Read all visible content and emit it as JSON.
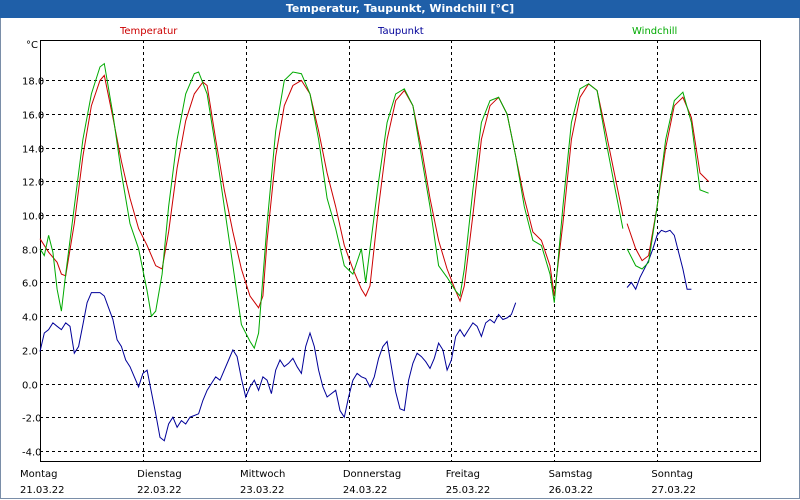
{
  "window": {
    "title": "Temperatur, Taupunkt, Windchill [°C]"
  },
  "colors": {
    "temperatur": "#cc0000",
    "taupunkt": "#000099",
    "windchill": "#00aa00",
    "grid": "#000000",
    "title_bg": "#1f5fa8"
  },
  "chart_data": {
    "type": "line",
    "title": "Temperatur, Taupunkt, Windchill [°C]",
    "ylabel": "°C",
    "ylim": [
      -4.6,
      20.4
    ],
    "yticks": [
      "18.0",
      "16.0",
      "14.0",
      "12.0",
      "10.0",
      "8.0",
      "6.0",
      "4.0",
      "2.0",
      "0.0",
      "-2.0",
      "-4.0"
    ],
    "ytick_values": [
      18,
      16,
      14,
      12,
      10,
      8,
      6,
      4,
      2,
      0,
      -2,
      -4
    ],
    "x_unit": "hours since 21.03.22 00:00",
    "xlim": [
      0,
      168
    ],
    "day_labels": [
      {
        "day": "Montag",
        "date": "21.03.22"
      },
      {
        "day": "Dienstag",
        "date": "22.03.22"
      },
      {
        "day": "Mittwoch",
        "date": "23.03.22"
      },
      {
        "day": "Donnerstag",
        "date": "24.03.22"
      },
      {
        "day": "Freitag",
        "date": "25.03.22"
      },
      {
        "day": "Samstag",
        "date": "26.03.22"
      },
      {
        "day": "Sonntag",
        "date": "27.03.22"
      }
    ],
    "grid": true,
    "series": [
      {
        "name": "Temperatur",
        "color": "#cc0000",
        "points": [
          [
            0,
            8.6
          ],
          [
            2,
            7.8
          ],
          [
            4,
            7.2
          ],
          [
            5,
            6.5
          ],
          [
            6,
            6.4
          ],
          [
            8,
            9.5
          ],
          [
            10,
            13.5
          ],
          [
            12,
            16.5
          ],
          [
            14,
            18.0
          ],
          [
            15,
            18.3
          ],
          [
            17,
            15.8
          ],
          [
            19,
            13.2
          ],
          [
            21,
            11.0
          ],
          [
            23,
            9.2
          ],
          [
            25,
            8.2
          ],
          [
            27,
            7.0
          ],
          [
            28.5,
            6.8
          ],
          [
            30,
            9.0
          ],
          [
            32,
            12.8
          ],
          [
            34,
            15.6
          ],
          [
            36,
            17.2
          ],
          [
            38,
            17.9
          ],
          [
            39,
            17.7
          ],
          [
            41,
            14.5
          ],
          [
            43,
            11.5
          ],
          [
            45,
            9.0
          ],
          [
            47,
            6.8
          ],
          [
            49,
            5.2
          ],
          [
            51,
            4.5
          ],
          [
            52,
            5.2
          ],
          [
            53,
            8.5
          ],
          [
            55,
            13.5
          ],
          [
            57,
            16.5
          ],
          [
            59,
            17.7
          ],
          [
            61,
            18.0
          ],
          [
            63,
            17.2
          ],
          [
            65,
            15.0
          ],
          [
            67,
            12.5
          ],
          [
            69,
            10.5
          ],
          [
            71,
            8.2
          ],
          [
            73,
            6.8
          ],
          [
            75,
            5.6
          ],
          [
            76,
            5.2
          ],
          [
            77,
            5.8
          ],
          [
            79,
            10.5
          ],
          [
            81,
            14.5
          ],
          [
            83,
            16.8
          ],
          [
            85,
            17.4
          ],
          [
            87,
            16.5
          ],
          [
            89,
            14.0
          ],
          [
            91,
            11.0
          ],
          [
            93,
            8.5
          ],
          [
            95,
            6.8
          ],
          [
            97,
            5.5
          ],
          [
            98,
            4.9
          ],
          [
            99,
            5.8
          ],
          [
            101,
            10.0
          ],
          [
            103,
            14.5
          ],
          [
            105,
            16.5
          ],
          [
            107,
            17.0
          ],
          [
            109,
            16.0
          ],
          [
            111,
            13.5
          ],
          [
            113,
            11.0
          ],
          [
            115,
            9.0
          ],
          [
            117,
            8.5
          ],
          [
            119,
            7.0
          ],
          [
            120,
            5.2
          ],
          [
            122,
            9.5
          ],
          [
            124,
            14.5
          ],
          [
            126,
            17.0
          ],
          [
            128,
            17.8
          ],
          [
            130,
            17.4
          ],
          [
            132,
            15.0
          ],
          [
            134,
            12.5
          ],
          [
            136,
            10.0
          ]
        ],
        "points_2": [
          [
            137,
            9.5
          ],
          [
            139,
            8.0
          ],
          [
            140.5,
            7.3
          ],
          [
            142,
            7.6
          ],
          [
            144,
            10.5
          ],
          [
            146,
            14.0
          ],
          [
            148,
            16.5
          ],
          [
            150,
            17.0
          ],
          [
            152,
            15.8
          ],
          [
            154,
            12.5
          ],
          [
            156,
            12.0
          ]
        ]
      },
      {
        "name": "Taupunkt",
        "color": "#000099",
        "points": [
          [
            0,
            1.9
          ],
          [
            1,
            3.0
          ],
          [
            2,
            3.2
          ],
          [
            3,
            3.6
          ],
          [
            4,
            3.4
          ],
          [
            5,
            3.2
          ],
          [
            6,
            3.6
          ],
          [
            7,
            3.4
          ],
          [
            8,
            1.8
          ],
          [
            9,
            2.2
          ],
          [
            10,
            3.5
          ],
          [
            11,
            4.8
          ],
          [
            12,
            5.4
          ],
          [
            13,
            5.4
          ],
          [
            14,
            5.4
          ],
          [
            15,
            5.2
          ],
          [
            16,
            4.5
          ],
          [
            17,
            3.8
          ],
          [
            18,
            2.6
          ],
          [
            19,
            2.2
          ],
          [
            20,
            1.4
          ],
          [
            21,
            1.0
          ],
          [
            22,
            0.4
          ],
          [
            23,
            -0.2
          ],
          [
            24,
            0.6
          ],
          [
            25,
            0.8
          ],
          [
            26,
            -0.5
          ],
          [
            27,
            -1.8
          ],
          [
            28,
            -3.2
          ],
          [
            29,
            -3.4
          ],
          [
            30,
            -2.4
          ],
          [
            31,
            -2.0
          ],
          [
            32,
            -2.6
          ],
          [
            33,
            -2.2
          ],
          [
            34,
            -2.4
          ],
          [
            35,
            -2.0
          ],
          [
            36,
            -1.9
          ],
          [
            37,
            -1.8
          ],
          [
            38,
            -1.0
          ],
          [
            39,
            -0.4
          ],
          [
            40,
            0.0
          ],
          [
            41,
            0.4
          ],
          [
            42,
            0.2
          ],
          [
            43,
            0.8
          ],
          [
            44,
            1.4
          ],
          [
            45,
            2.0
          ],
          [
            46,
            1.6
          ],
          [
            47,
            0.3
          ],
          [
            48,
            -0.8
          ],
          [
            49,
            -0.2
          ],
          [
            50,
            0.2
          ],
          [
            51,
            -0.4
          ],
          [
            52,
            0.4
          ],
          [
            53,
            0.2
          ],
          [
            54,
            -0.6
          ],
          [
            55,
            0.8
          ],
          [
            56,
            1.4
          ],
          [
            57,
            1.0
          ],
          [
            58,
            1.2
          ],
          [
            59,
            1.5
          ],
          [
            60,
            1.0
          ],
          [
            61,
            0.6
          ],
          [
            62,
            2.2
          ],
          [
            63,
            3.0
          ],
          [
            64,
            2.2
          ],
          [
            65,
            0.8
          ],
          [
            66,
            -0.2
          ],
          [
            67,
            -0.8
          ],
          [
            68,
            -0.6
          ],
          [
            69,
            -0.4
          ],
          [
            70,
            -1.6
          ],
          [
            71,
            -2.0
          ],
          [
            72,
            -0.8
          ],
          [
            73,
            0.2
          ],
          [
            74,
            0.6
          ],
          [
            75,
            0.4
          ],
          [
            76,
            0.3
          ],
          [
            77,
            -0.2
          ],
          [
            78,
            0.4
          ],
          [
            79,
            1.5
          ],
          [
            80,
            2.2
          ],
          [
            81,
            2.5
          ],
          [
            82,
            1.0
          ],
          [
            83,
            -0.5
          ],
          [
            84,
            -1.5
          ],
          [
            85,
            -1.6
          ],
          [
            86,
            0.2
          ],
          [
            87,
            1.2
          ],
          [
            88,
            1.8
          ],
          [
            89,
            1.6
          ],
          [
            90,
            1.3
          ],
          [
            91,
            0.9
          ],
          [
            92,
            1.5
          ],
          [
            93,
            2.4
          ],
          [
            94,
            2.0
          ],
          [
            95,
            0.8
          ],
          [
            96,
            1.4
          ],
          [
            97,
            2.8
          ],
          [
            98,
            3.2
          ],
          [
            99,
            2.8
          ],
          [
            100,
            3.2
          ],
          [
            101,
            3.6
          ],
          [
            102,
            3.4
          ],
          [
            103,
            2.8
          ],
          [
            104,
            3.6
          ],
          [
            105,
            3.8
          ],
          [
            106,
            3.6
          ],
          [
            107,
            4.1
          ],
          [
            108,
            3.8
          ],
          [
            109,
            3.9
          ],
          [
            110,
            4.1
          ],
          [
            111,
            4.8
          ]
        ],
        "points_2": [
          [
            137,
            5.7
          ],
          [
            138,
            6.0
          ],
          [
            139,
            5.6
          ],
          [
            140,
            6.3
          ],
          [
            141,
            6.8
          ],
          [
            142,
            7.3
          ],
          [
            143,
            8.0
          ],
          [
            144,
            8.8
          ],
          [
            145,
            9.1
          ],
          [
            146,
            9.0
          ],
          [
            147,
            9.1
          ],
          [
            148,
            8.8
          ],
          [
            149,
            7.8
          ],
          [
            150,
            6.8
          ],
          [
            151,
            5.6
          ],
          [
            152,
            5.6
          ]
        ]
      },
      {
        "name": "Windchill",
        "color": "#00aa00",
        "points": [
          [
            0,
            8.0
          ],
          [
            1,
            7.6
          ],
          [
            2,
            8.8
          ],
          [
            3,
            7.8
          ],
          [
            4,
            5.6
          ],
          [
            5,
            4.3
          ],
          [
            6,
            6.5
          ],
          [
            8,
            10.5
          ],
          [
            10,
            14.5
          ],
          [
            12,
            17.2
          ],
          [
            14,
            18.8
          ],
          [
            15,
            19.0
          ],
          [
            17,
            16.0
          ],
          [
            19,
            12.5
          ],
          [
            21,
            9.5
          ],
          [
            23,
            8.0
          ],
          [
            25,
            5.5
          ],
          [
            26,
            4.0
          ],
          [
            27,
            4.3
          ],
          [
            28.5,
            6.5
          ],
          [
            30,
            10.5
          ],
          [
            32,
            14.5
          ],
          [
            34,
            17.2
          ],
          [
            36,
            18.4
          ],
          [
            37,
            18.5
          ],
          [
            39,
            17.2
          ],
          [
            41,
            14.0
          ],
          [
            43,
            10.5
          ],
          [
            45,
            7.0
          ],
          [
            47,
            3.5
          ],
          [
            49,
            2.5
          ],
          [
            50,
            2.1
          ],
          [
            51,
            3.0
          ],
          [
            53,
            9.5
          ],
          [
            55,
            15.0
          ],
          [
            57,
            18.0
          ],
          [
            59,
            18.5
          ],
          [
            61,
            18.4
          ],
          [
            63,
            17.2
          ],
          [
            65,
            14.5
          ],
          [
            67,
            11.0
          ],
          [
            69,
            9.2
          ],
          [
            71,
            7.0
          ],
          [
            73,
            6.5
          ],
          [
            75,
            8.0
          ],
          [
            76,
            6.0
          ],
          [
            77,
            8.0
          ],
          [
            79,
            12.0
          ],
          [
            81,
            15.5
          ],
          [
            83,
            17.2
          ],
          [
            85,
            17.5
          ],
          [
            87,
            16.5
          ],
          [
            89,
            13.5
          ],
          [
            91,
            10.5
          ],
          [
            93,
            7.0
          ],
          [
            95,
            6.3
          ],
          [
            97,
            5.5
          ],
          [
            98,
            5.2
          ],
          [
            99,
            6.8
          ],
          [
            101,
            11.5
          ],
          [
            103,
            15.5
          ],
          [
            105,
            16.8
          ],
          [
            107,
            17.0
          ],
          [
            109,
            16.0
          ],
          [
            111,
            13.5
          ],
          [
            113,
            10.5
          ],
          [
            115,
            8.5
          ],
          [
            117,
            8.2
          ],
          [
            119,
            6.5
          ],
          [
            120,
            4.8
          ],
          [
            122,
            10.5
          ],
          [
            124,
            15.5
          ],
          [
            126,
            17.5
          ],
          [
            128,
            17.8
          ],
          [
            130,
            17.4
          ],
          [
            132,
            14.5
          ],
          [
            134,
            11.8
          ],
          [
            136,
            9.2
          ]
        ],
        "points_2": [
          [
            137,
            8.0
          ],
          [
            139,
            7.0
          ],
          [
            140.5,
            6.8
          ],
          [
            142,
            7.2
          ],
          [
            144,
            10.5
          ],
          [
            146,
            14.5
          ],
          [
            148,
            16.8
          ],
          [
            150,
            17.3
          ],
          [
            152,
            15.5
          ],
          [
            154,
            11.5
          ],
          [
            156,
            11.3
          ]
        ]
      }
    ]
  }
}
